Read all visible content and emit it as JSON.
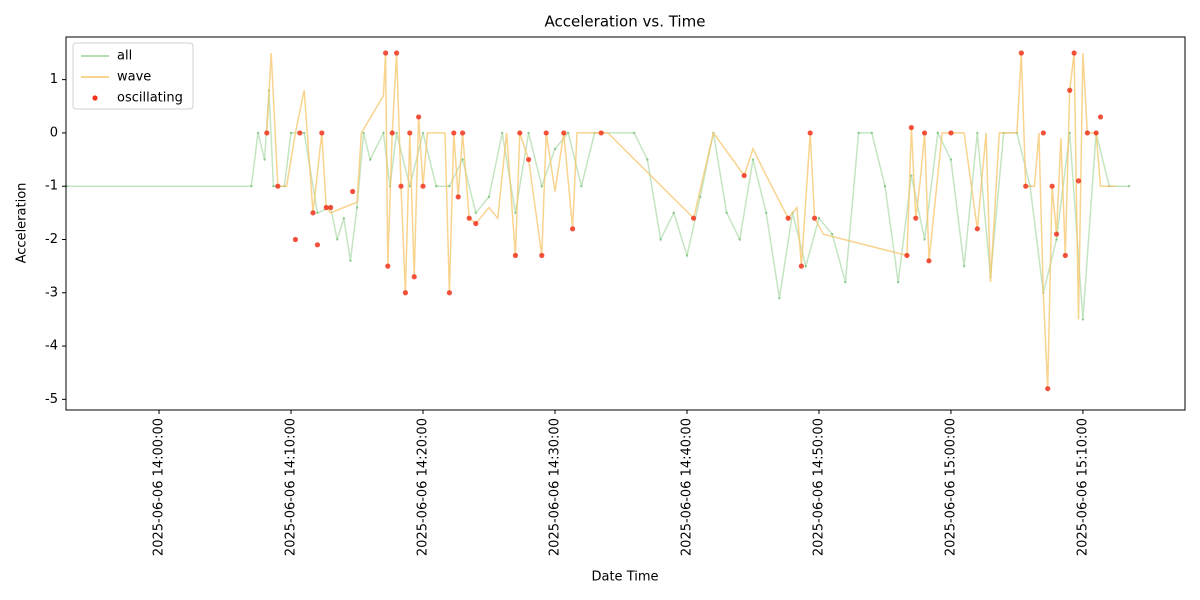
{
  "chart_data": {
    "type": "line",
    "title": "Acceleration vs. Time",
    "x_label": "Date Time",
    "y_label": "Acceleration",
    "legend": "upper left",
    "xlim": [
      "2025-06-06 13:52:57",
      "2025-06-06 15:17:44"
    ],
    "xticks": [
      "2025-06-06 14:00:00",
      "2025-06-06 14:10:00",
      "2025-06-06 14:20:00",
      "2025-06-06 14:30:00",
      "2025-06-06 14:40:00",
      "2025-06-06 14:50:00",
      "2025-06-06 15:00:00",
      "2025-06-06 15:10:00"
    ],
    "ylim": [
      -5.2,
      1.8
    ],
    "yticks": [
      -5,
      -4,
      -3,
      -2,
      -1,
      0,
      1
    ],
    "series": [
      {
        "name": "all",
        "type": "line",
        "color": "#9fd39a",
        "x": [
          "2025-06-06 13:53:00",
          "2025-06-06 14:07:00",
          "2025-06-06 14:07:30",
          "2025-06-06 14:08:00",
          "2025-06-06 14:08:20",
          "2025-06-06 14:08:40",
          "2025-06-06 14:09:30",
          "2025-06-06 14:10:00",
          "2025-06-06 14:11:00",
          "2025-06-06 14:12:00",
          "2025-06-06 14:13:00",
          "2025-06-06 14:13:30",
          "2025-06-06 14:14:00",
          "2025-06-06 14:14:30",
          "2025-06-06 14:15:00",
          "2025-06-06 14:15:30",
          "2025-06-06 14:16:00",
          "2025-06-06 14:17:00",
          "2025-06-06 14:17:30",
          "2025-06-06 14:18:00",
          "2025-06-06 14:19:00",
          "2025-06-06 14:20:00",
          "2025-06-06 14:21:00",
          "2025-06-06 14:22:00",
          "2025-06-06 14:23:00",
          "2025-06-06 14:24:00",
          "2025-06-06 14:25:00",
          "2025-06-06 14:26:00",
          "2025-06-06 14:27:00",
          "2025-06-06 14:28:00",
          "2025-06-06 14:29:00",
          "2025-06-06 14:30:00",
          "2025-06-06 14:31:00",
          "2025-06-06 14:32:00",
          "2025-06-06 14:33:00",
          "2025-06-06 14:36:00",
          "2025-06-06 14:37:00",
          "2025-06-06 14:38:00",
          "2025-06-06 14:39:00",
          "2025-06-06 14:40:00",
          "2025-06-06 14:41:00",
          "2025-06-06 14:42:00",
          "2025-06-06 14:43:00",
          "2025-06-06 14:44:00",
          "2025-06-06 14:45:00",
          "2025-06-06 14:46:00",
          "2025-06-06 14:47:00",
          "2025-06-06 14:48:00",
          "2025-06-06 14:49:00",
          "2025-06-06 14:50:00",
          "2025-06-06 14:51:00",
          "2025-06-06 14:52:00",
          "2025-06-06 14:53:00",
          "2025-06-06 14:54:00",
          "2025-06-06 14:55:00",
          "2025-06-06 14:56:00",
          "2025-06-06 14:57:00",
          "2025-06-06 14:58:00",
          "2025-06-06 14:59:00",
          "2025-06-06 15:00:00",
          "2025-06-06 15:01:00",
          "2025-06-06 15:02:00",
          "2025-06-06 15:03:00",
          "2025-06-06 15:04:00",
          "2025-06-06 15:05:00",
          "2025-06-06 15:06:00",
          "2025-06-06 15:07:00",
          "2025-06-06 15:08:00",
          "2025-06-06 15:09:00",
          "2025-06-06 15:10:00",
          "2025-06-06 15:11:00",
          "2025-06-06 15:12:00",
          "2025-06-06 15:13:30"
        ],
        "values": [
          -1,
          -1,
          0,
          -0.5,
          0.8,
          -1,
          -1,
          0,
          0,
          -1.5,
          -1.4,
          -2,
          -1.6,
          -2.4,
          -1.4,
          0,
          -0.5,
          0,
          -1,
          0,
          -1,
          0,
          -1,
          -1,
          -0.5,
          -1.5,
          -1.2,
          0,
          -1.5,
          0,
          -1,
          -0.3,
          0,
          -1,
          0,
          0,
          -0.5,
          -2,
          -1.5,
          -2.3,
          -1.2,
          0,
          -1.5,
          -2,
          -0.5,
          -1.5,
          -3.1,
          -1.5,
          -2.5,
          -1.6,
          -1.9,
          -2.8,
          0,
          0,
          -1,
          -2.8,
          -0.8,
          -2,
          0,
          -0.5,
          -2.5,
          0,
          -2.7,
          0,
          0,
          -1,
          -3,
          -2,
          0,
          -3.5,
          0,
          -1,
          -1
        ]
      },
      {
        "name": "wave",
        "type": "line",
        "color": "#f5c66a",
        "x": [
          "2025-06-06 14:08:10",
          "2025-06-06 14:08:30",
          "2025-06-06 14:09:00",
          "2025-06-06 14:09:40",
          "2025-06-06 14:10:20",
          "2025-06-06 14:11:00",
          "2025-06-06 14:11:40",
          "2025-06-06 14:12:20",
          "2025-06-06 14:12:40",
          "2025-06-06 14:13:00",
          "2025-06-06 14:14:00",
          "2025-06-06 14:15:00",
          "2025-06-06 14:15:20",
          "2025-06-06 14:17:00",
          "2025-06-06 14:17:10",
          "2025-06-06 14:17:20",
          "2025-06-06 14:17:40",
          "2025-06-06 14:18:00",
          "2025-06-06 14:18:20",
          "2025-06-06 14:18:40",
          "2025-06-06 14:19:00",
          "2025-06-06 14:19:20",
          "2025-06-06 14:19:40",
          "2025-06-06 14:20:00",
          "2025-06-06 14:20:20",
          "2025-06-06 14:21:40",
          "2025-06-06 14:22:00",
          "2025-06-06 14:22:20",
          "2025-06-06 14:22:40",
          "2025-06-06 14:23:00",
          "2025-06-06 14:23:30",
          "2025-06-06 14:24:00",
          "2025-06-06 14:25:00",
          "2025-06-06 14:25:40",
          "2025-06-06 14:26:20",
          "2025-06-06 14:27:00",
          "2025-06-06 14:27:20",
          "2025-06-06 14:28:00",
          "2025-06-06 14:29:00",
          "2025-06-06 14:29:20",
          "2025-06-06 14:30:00",
          "2025-06-06 14:30:40",
          "2025-06-06 14:31:20",
          "2025-06-06 14:31:40",
          "2025-06-06 14:34:00",
          "2025-06-06 14:40:30",
          "2025-06-06 14:42:00",
          "2025-06-06 14:44:20",
          "2025-06-06 14:45:00",
          "2025-06-06 14:46:00",
          "2025-06-06 14:47:40",
          "2025-06-06 14:48:20",
          "2025-06-06 14:48:40",
          "2025-06-06 14:49:20",
          "2025-06-06 14:49:40",
          "2025-06-06 14:50:20",
          "2025-06-06 14:56:40",
          "2025-06-06 14:57:00",
          "2025-06-06 14:57:20",
          "2025-06-06 14:57:40",
          "2025-06-06 14:58:00",
          "2025-06-06 14:58:20",
          "2025-06-06 14:59:20",
          "2025-06-06 15:01:00",
          "2025-06-06 15:02:00",
          "2025-06-06 15:02:40",
          "2025-06-06 15:03:00",
          "2025-06-06 15:03:40",
          "2025-06-06 15:05:00",
          "2025-06-06 15:05:20",
          "2025-06-06 15:05:40",
          "2025-06-06 15:06:20",
          "2025-06-06 15:06:40",
          "2025-06-06 15:07:00",
          "2025-06-06 15:07:20",
          "2025-06-06 15:07:40",
          "2025-06-06 15:08:00",
          "2025-06-06 15:08:20",
          "2025-06-06 15:08:40",
          "2025-06-06 15:09:00",
          "2025-06-06 15:09:20",
          "2025-06-06 15:09:40",
          "2025-06-06 15:10:00",
          "2025-06-06 15:10:20",
          "2025-06-06 15:11:00",
          "2025-06-06 15:11:20",
          "2025-06-06 15:12:30"
        ],
        "values": [
          0,
          1.5,
          -1,
          -1,
          0,
          0.8,
          -1.5,
          0,
          -1.4,
          -1.5,
          -1.4,
          -1.3,
          0,
          0.7,
          1.5,
          -2.5,
          0,
          1.5,
          -1,
          -3,
          0,
          -2.7,
          0.3,
          -1,
          0,
          0,
          -3,
          0,
          -1.2,
          0,
          -1.6,
          -1.7,
          -1.4,
          -1.6,
          0,
          -2.3,
          0,
          -0.5,
          -2.3,
          0,
          -1.1,
          0,
          -1.8,
          0,
          0,
          -1.6,
          0,
          -0.8,
          -0.3,
          -0.8,
          -1.6,
          -1.4,
          -2.5,
          0,
          -1.6,
          -1.9,
          -2.3,
          0.1,
          -1.6,
          -0.9,
          0,
          -2.4,
          0,
          0,
          -1.8,
          0,
          -2.8,
          0,
          0,
          1.5,
          -1,
          -1,
          0,
          -3,
          -4.8,
          -1,
          -1.9,
          -0.1,
          -2.3,
          0.8,
          1.5,
          -3.5,
          1.5,
          0,
          0,
          -1,
          -1
        ]
      },
      {
        "name": "oscillating",
        "type": "scatter",
        "color": "#f0341c",
        "x": [
          "2025-06-06 14:08:10",
          "2025-06-06 14:09:00",
          "2025-06-06 14:10:20",
          "2025-06-06 14:10:40",
          "2025-06-06 14:11:40",
          "2025-06-06 14:12:00",
          "2025-06-06 14:12:20",
          "2025-06-06 14:12:40",
          "2025-06-06 14:13:00",
          "2025-06-06 14:14:40",
          "2025-06-06 14:17:10",
          "2025-06-06 14:17:20",
          "2025-06-06 14:17:40",
          "2025-06-06 14:18:00",
          "2025-06-06 14:18:20",
          "2025-06-06 14:18:40",
          "2025-06-06 14:19:00",
          "2025-06-06 14:19:20",
          "2025-06-06 14:19:40",
          "2025-06-06 14:20:00",
          "2025-06-06 14:22:00",
          "2025-06-06 14:22:20",
          "2025-06-06 14:22:40",
          "2025-06-06 14:23:00",
          "2025-06-06 14:23:30",
          "2025-06-06 14:24:00",
          "2025-06-06 14:27:00",
          "2025-06-06 14:27:20",
          "2025-06-06 14:28:00",
          "2025-06-06 14:29:00",
          "2025-06-06 14:29:20",
          "2025-06-06 14:30:40",
          "2025-06-06 14:31:20",
          "2025-06-06 14:33:30",
          "2025-06-06 14:40:30",
          "2025-06-06 14:44:20",
          "2025-06-06 14:47:40",
          "2025-06-06 14:48:40",
          "2025-06-06 14:49:20",
          "2025-06-06 14:49:40",
          "2025-06-06 14:56:40",
          "2025-06-06 14:57:00",
          "2025-06-06 14:57:20",
          "2025-06-06 14:58:00",
          "2025-06-06 14:58:20",
          "2025-06-06 15:00:00",
          "15:02:00",
          "2025-06-06 15:05:20",
          "2025-06-06 15:05:40",
          "2025-06-06 15:07:00",
          "2025-06-06 15:07:20",
          "2025-06-06 15:07:40",
          "2025-06-06 15:08:00",
          "2025-06-06 15:08:40",
          "2025-06-06 15:09:00",
          "2025-06-06 15:09:20",
          "2025-06-06 15:09:40",
          "2025-06-06 15:10:20",
          "2025-06-06 15:11:00",
          "2025-06-06 15:11:20"
        ],
        "values": [
          0,
          -1,
          -2,
          0,
          -1.5,
          -2.1,
          0,
          -1.4,
          -1.4,
          -1.1,
          1.5,
          -2.5,
          0,
          1.5,
          -1,
          -3,
          0,
          -2.7,
          0.3,
          -1,
          -3,
          0,
          -1.2,
          0,
          -1.6,
          -1.7,
          -2.3,
          0,
          -0.5,
          -2.3,
          0,
          0,
          -1.8,
          0,
          -1.6,
          -0.8,
          -1.6,
          -2.5,
          0,
          -1.6,
          -2.3,
          0.1,
          -1.6,
          0,
          -2.4,
          0,
          -1.8,
          1.5,
          -1,
          0,
          -4.8,
          -1,
          -1.9,
          -2.3,
          0.8,
          1.5,
          -0.9,
          0,
          0,
          0.3
        ]
      }
    ]
  }
}
